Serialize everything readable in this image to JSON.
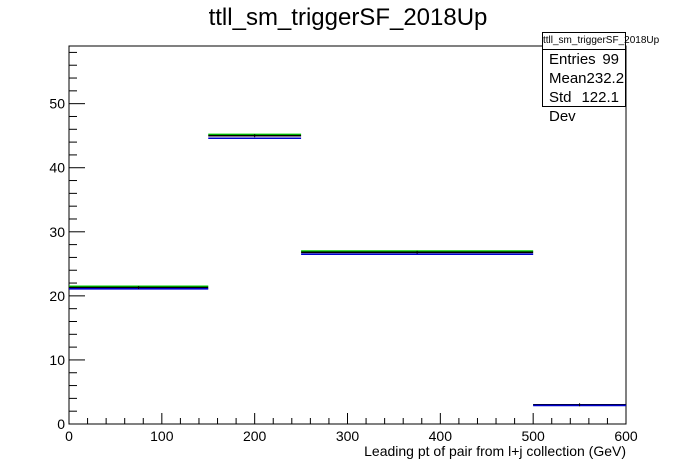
{
  "chart_data": {
    "type": "histogram",
    "title": "ttll_sm_triggerSF_2018Up",
    "xlabel": "Leading pt of pair from l+j collection (GeV)",
    "ylabel": "",
    "xlim": [
      0,
      600
    ],
    "ylim": [
      0,
      59
    ],
    "x_ticks": [
      0,
      100,
      200,
      300,
      400,
      500,
      600
    ],
    "y_ticks": [
      0,
      10,
      20,
      30,
      40,
      50
    ],
    "bins": [
      [
        0,
        150
      ],
      [
        150,
        250
      ],
      [
        250,
        500
      ],
      [
        500,
        600
      ]
    ],
    "series": [
      {
        "color": "#00cc00",
        "values": [
          21.5,
          45.2,
          27.0,
          3.0
        ]
      },
      {
        "color": "#000000",
        "values": [
          21.3,
          45.0,
          26.8,
          3.0
        ]
      },
      {
        "color": "#0000cc",
        "values": [
          21.1,
          44.6,
          26.5,
          2.9
        ]
      }
    ],
    "stats": {
      "name": "ttll_sm_triggerSF_2018Up",
      "entries_label": "Entries",
      "entries": "99",
      "mean_label": "Mean",
      "mean": "232.2",
      "std_label": "Std Dev",
      "std": "122.1"
    }
  }
}
